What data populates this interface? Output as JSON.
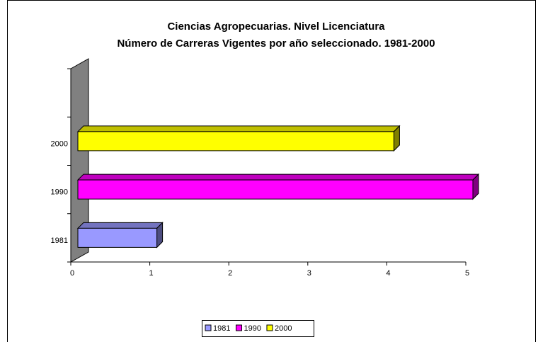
{
  "chart_data": {
    "type": "bar3d_horizontal",
    "title": "Ciencias Agropecuarias. Nivel Licenciatura",
    "subtitle": "Número de Carreras Vigentes por año seleccionado. 1981-2000",
    "categories": [
      "1981",
      "1990",
      "2000",
      null
    ],
    "series": [
      {
        "name": "1981",
        "color": "#9999ff",
        "values": [
          1,
          null,
          null,
          null
        ]
      },
      {
        "name": "1990",
        "color": "#ff00ff",
        "values": [
          null,
          5,
          null,
          null
        ]
      },
      {
        "name": "2000",
        "color": "#ffff00",
        "values": [
          null,
          null,
          4,
          null
        ]
      }
    ],
    "xlim": [
      0,
      5
    ],
    "xticks": [
      0,
      1,
      2,
      3,
      4,
      5
    ],
    "grid": false
  }
}
